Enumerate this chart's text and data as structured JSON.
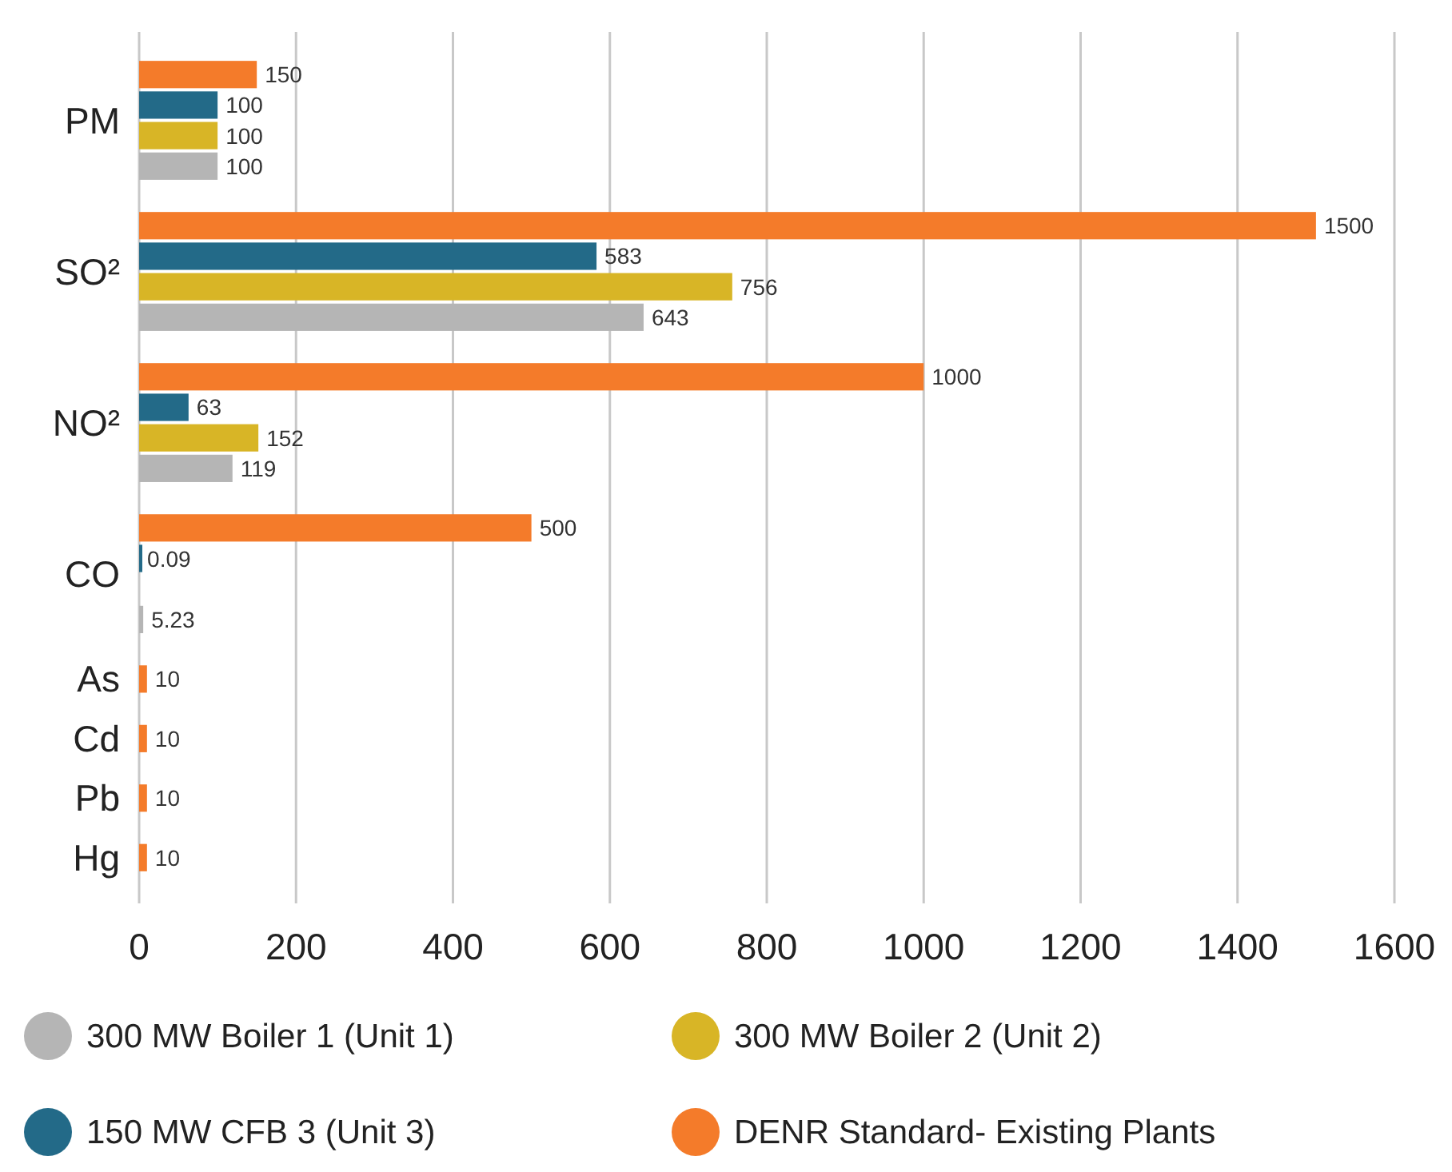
{
  "chart_data": {
    "type": "bar",
    "orientation": "horizontal",
    "categories": [
      "PM",
      "SO²",
      "NO²",
      "CO",
      "As",
      "Cd",
      "Pb",
      "Hg"
    ],
    "series": [
      {
        "name": "DENR Standard- Existing Plants",
        "color": "#f47b2a",
        "values": [
          150,
          1500,
          1000,
          500,
          10,
          10,
          10,
          10
        ]
      },
      {
        "name": "150 MW CFB 3 (Unit 3)",
        "color": "#236a88",
        "values": [
          100,
          583,
          63,
          0.09,
          null,
          null,
          null,
          null
        ]
      },
      {
        "name": "300 MW Boiler  2 (Unit 2)",
        "color": "#d8b526",
        "values": [
          100,
          756,
          152,
          null,
          null,
          null,
          null,
          null
        ]
      },
      {
        "name": "300 MW Boiler 1 (Unit 1)",
        "color": "#b5b5b5",
        "values": [
          100,
          643,
          119,
          5.23,
          null,
          null,
          null,
          null
        ]
      }
    ],
    "xlim": [
      0,
      1600
    ],
    "xticks": [
      0,
      200,
      400,
      600,
      800,
      1000,
      1200,
      1400,
      1600
    ],
    "grid": "x",
    "legend": "bottom",
    "data_labels": true
  }
}
